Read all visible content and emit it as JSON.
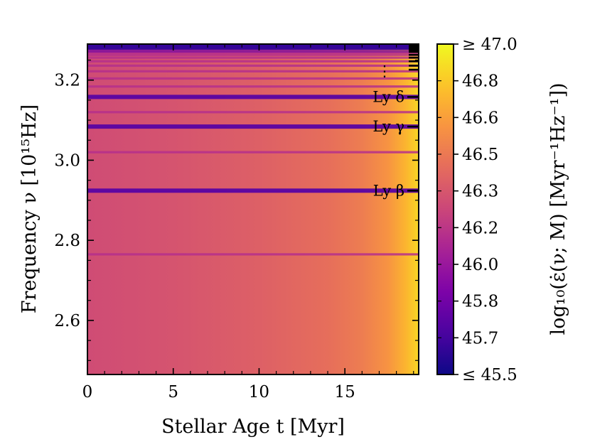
{
  "chart_data": {
    "type": "heatmap",
    "xlabel": "Stellar Age t [Myr]",
    "ylabel": "Frequency ν [10¹⁵Hz]",
    "x_ticks": [
      0,
      5,
      10,
      15
    ],
    "y_ticks": [
      2.6,
      2.8,
      3.0,
      3.2
    ],
    "xlim": [
      0,
      19.3
    ],
    "ylim": [
      2.465,
      3.29
    ],
    "colormap": "plasma",
    "colorbar": {
      "label": "log₁₀(ε̇(ν; M)  [Myr⁻¹Hz⁻¹])",
      "range": [
        45.5,
        47.0
      ],
      "tick_labels": [
        "≤ 45.5",
        "45.7",
        "45.8",
        "46.0",
        "46.2",
        "46.3",
        "46.5",
        "46.6",
        "46.8",
        "≥ 47.0"
      ]
    },
    "absorption_lines": [
      {
        "label": "Ly β",
        "frequency": 2.924
      },
      {
        "label": "Ly γ",
        "frequency": 3.084
      },
      {
        "label": "Ly δ",
        "frequency": 3.158
      }
    ],
    "continuation_marker": "⋮",
    "background_level": {
      "age": [
        0,
        5,
        10,
        14,
        16,
        17.5,
        18.5,
        19.3
      ],
      "value": [
        46.28,
        46.32,
        46.38,
        46.45,
        46.52,
        46.62,
        46.75,
        46.88
      ]
    }
  }
}
